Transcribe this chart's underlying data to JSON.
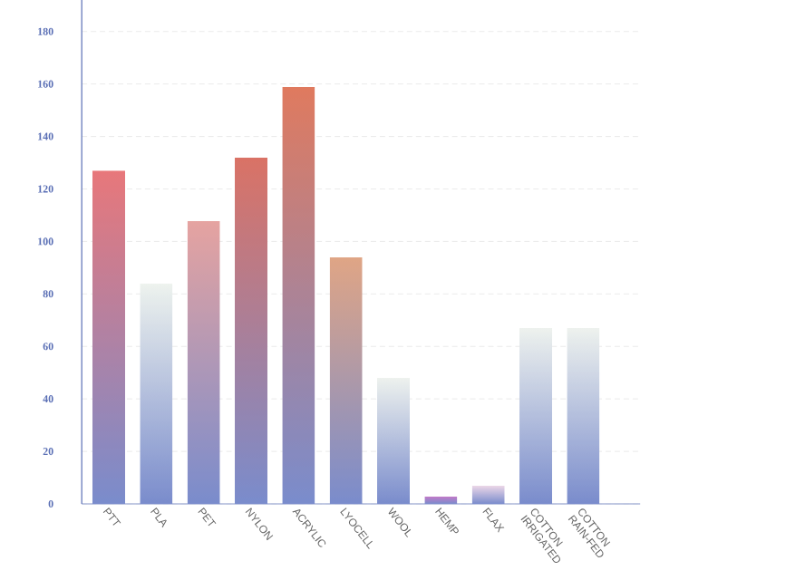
{
  "chart_data": {
    "type": "bar",
    "categories": [
      "PTT",
      "PLA",
      "PET",
      "NYLON",
      "ACRYLIC",
      "LYOCELL",
      "WOOL",
      "HEMP",
      "FLAX",
      "COTTON IRRIGATED",
      "COTTON RAIN-FED"
    ],
    "values": [
      127,
      84,
      108,
      132,
      159,
      94,
      48,
      3,
      7,
      67,
      67
    ],
    "colors": [
      "#e8777a",
      "#eef3ee",
      "#e6a3a0",
      "#da7265",
      "#e07a5e",
      "#e0a585",
      "#eef2ee",
      "#c878c8",
      "#eed8e8",
      "#eef2ee",
      "#eef2ee"
    ],
    "ylim": [
      0,
      192
    ],
    "yticks": [
      0,
      20,
      40,
      60,
      80,
      100,
      120,
      140,
      160,
      180
    ],
    "grid": "y"
  }
}
